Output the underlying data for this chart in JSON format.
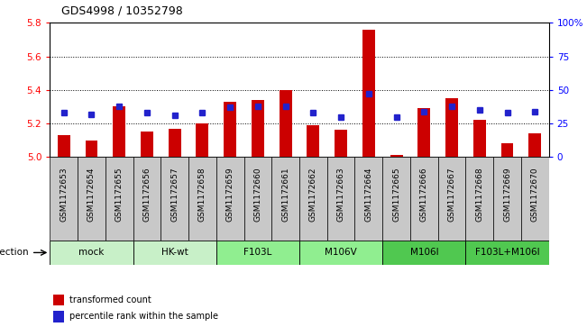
{
  "title": "GDS4998 / 10352798",
  "samples": [
    "GSM1172653",
    "GSM1172654",
    "GSM1172655",
    "GSM1172656",
    "GSM1172657",
    "GSM1172658",
    "GSM1172659",
    "GSM1172660",
    "GSM1172661",
    "GSM1172662",
    "GSM1172663",
    "GSM1172664",
    "GSM1172665",
    "GSM1172666",
    "GSM1172667",
    "GSM1172668",
    "GSM1172669",
    "GSM1172670"
  ],
  "red_values": [
    5.13,
    5.1,
    5.3,
    5.15,
    5.17,
    5.2,
    5.33,
    5.34,
    5.4,
    5.19,
    5.16,
    5.76,
    5.01,
    5.29,
    5.35,
    5.22,
    5.08,
    5.14
  ],
  "blue_values": [
    33,
    32,
    38,
    33,
    31,
    33,
    37,
    38,
    38,
    33,
    30,
    47,
    30,
    34,
    38,
    35,
    33,
    34
  ],
  "ylim_left": [
    5.0,
    5.8
  ],
  "ylim_right": [
    0,
    100
  ],
  "yticks_left": [
    5.0,
    5.2,
    5.4,
    5.6,
    5.8
  ],
  "yticks_right": [
    0,
    25,
    50,
    75,
    100
  ],
  "ytick_labels_right": [
    "0",
    "25",
    "50",
    "75",
    "100%"
  ],
  "groups": [
    {
      "label": "mock",
      "start": 0,
      "end": 2,
      "color": "#c8f0c8"
    },
    {
      "label": "HK-wt",
      "start": 3,
      "end": 5,
      "color": "#c8f0c8"
    },
    {
      "label": "F103L",
      "start": 6,
      "end": 8,
      "color": "#90ee90"
    },
    {
      "label": "M106V",
      "start": 9,
      "end": 11,
      "color": "#90ee90"
    },
    {
      "label": "M106I",
      "start": 12,
      "end": 14,
      "color": "#50c850"
    },
    {
      "label": "F103L+M106I",
      "start": 15,
      "end": 17,
      "color": "#50c850"
    }
  ],
  "infection_label": "infection",
  "bar_color": "#cc0000",
  "dot_color": "#2222cc",
  "sample_cell_color": "#c8c8c8",
  "plot_bg": "#ffffff",
  "legend_red": "transformed count",
  "legend_blue": "percentile rank within the sample",
  "title_fontsize": 9,
  "label_fontsize": 6.5,
  "group_fontsize": 7.5,
  "legend_fontsize": 7
}
